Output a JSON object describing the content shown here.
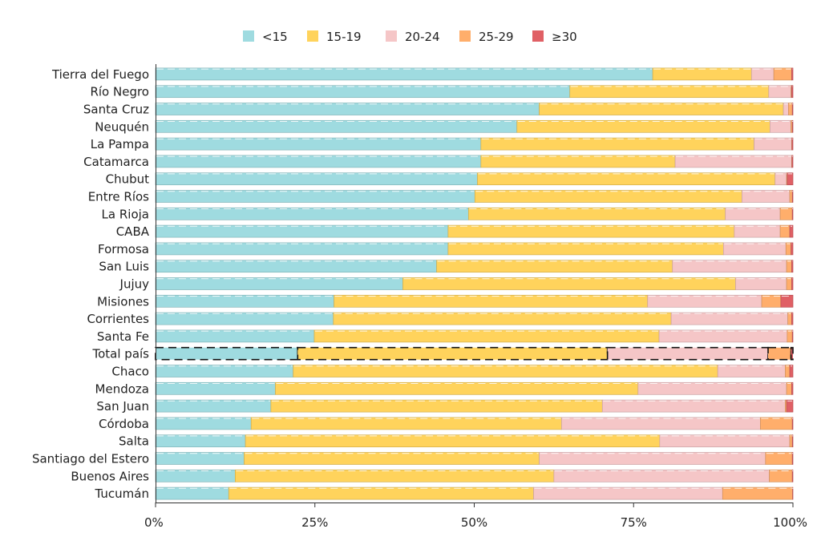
{
  "chart_data": {
    "type": "bar",
    "orientation": "horizontal",
    "stacked": true,
    "stack_mode": "percent",
    "title": "",
    "xlabel": "",
    "ylabel": "",
    "xlim": [
      0,
      100
    ],
    "x_ticks": [
      "0%",
      "25%",
      "50%",
      "75%",
      "100%"
    ],
    "x_tick_values": [
      0,
      25,
      50,
      75,
      100
    ],
    "grid": false,
    "legend_position": "top-center",
    "highlighted_category": "Total país",
    "categories": [
      "Tierra del Fuego",
      "Río Negro",
      "Santa Cruz",
      "Neuquén",
      "La Pampa",
      "Catamarca",
      "Chubut",
      "Entre Ríos",
      "La Rioja",
      "CABA",
      "Formosa",
      "San Luis",
      "Jujuy",
      "Misiones",
      "Corrientes",
      "Santa Fe",
      "Total país",
      "Chaco",
      "Mendoza",
      "San Juan",
      "Córdoba",
      "Salta",
      "Santiago del Estero",
      "Buenos Aires",
      "Tucumán"
    ],
    "series": [
      {
        "name": "<15",
        "color": "#9fdbe0",
        "values": [
          78,
          65,
          60.2,
          56.7,
          51.1,
          51.1,
          50.5,
          50.1,
          49.1,
          45.9,
          45.9,
          44.1,
          38.8,
          28.0,
          27.9,
          24.9,
          22.3,
          21.6,
          18.8,
          18.1,
          15.0,
          14.1,
          13.9,
          12.5,
          11.5
        ]
      },
      {
        "name": "15-19",
        "color": "#ffd35c",
        "values": [
          15.5,
          31.2,
          38.3,
          39.7,
          42.9,
          30.5,
          46.7,
          41.9,
          40.3,
          44.9,
          43.2,
          37.0,
          52.2,
          49.2,
          53.0,
          54.1,
          48.6,
          66.6,
          56.9,
          52.0,
          48.7,
          65.0,
          46.3,
          50.0,
          47.9
        ]
      },
      {
        "name": "20-24",
        "color": "#f5c6c7",
        "values": [
          3.5,
          3.5,
          0.8,
          3.3,
          5.9,
          18.3,
          1.8,
          7.5,
          8.6,
          7.2,
          9.8,
          17.9,
          8.0,
          17.9,
          18.3,
          20.1,
          25.2,
          10.6,
          23.3,
          28.7,
          31.2,
          20.4,
          35.5,
          33.8,
          29.7
        ]
      },
      {
        "name": "25-29",
        "color": "#ffae6b",
        "values": [
          2.8,
          0.1,
          0.6,
          0.2,
          0.05,
          0.05,
          0.1,
          0.4,
          1.9,
          1.5,
          0.8,
          0.8,
          0.8,
          3.0,
          0.6,
          0.8,
          3.6,
          0.7,
          0.8,
          0.2,
          5.0,
          0.4,
          4.2,
          3.6,
          11.0
        ]
      },
      {
        "name": "≥30",
        "color": "#e06065",
        "values": [
          0.2,
          0.2,
          0.1,
          0.1,
          0.15,
          0.15,
          0.9,
          0.1,
          0.1,
          0.5,
          0.3,
          0.2,
          0.2,
          1.9,
          0.2,
          0.1,
          0.3,
          0.5,
          0.2,
          1.0,
          0.1,
          0.1,
          0.1,
          0.1,
          0.05
        ]
      }
    ]
  }
}
